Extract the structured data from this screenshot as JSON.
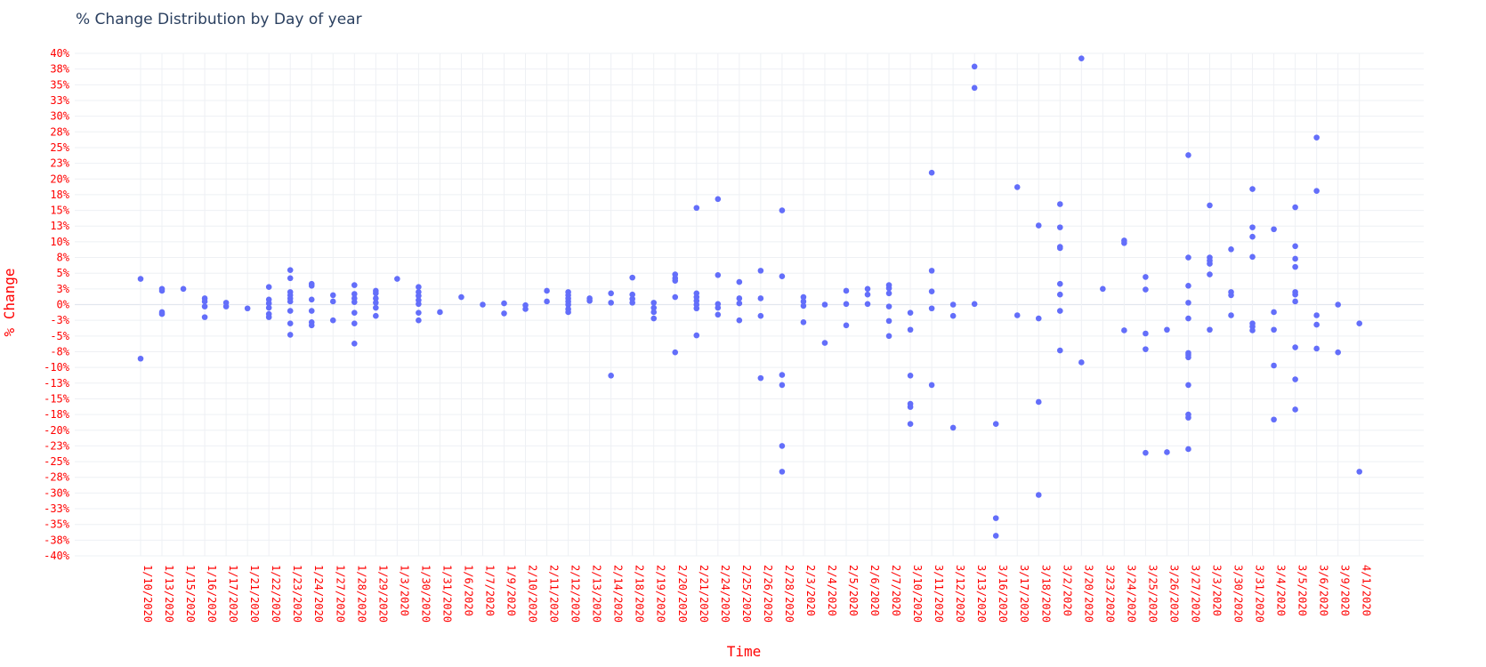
{
  "chart_data": {
    "type": "scatter",
    "title": "% Change Distribution by Day of year",
    "xlabel": "Time",
    "ylabel": "% Change",
    "ylim": [
      -40,
      40
    ],
    "grid": true,
    "marker_color": "#636efa",
    "tick_color": "#ff0000",
    "y_ticks": [
      "40%",
      "38%",
      "35%",
      "33%",
      "30%",
      "28%",
      "25%",
      "23%",
      "20%",
      "18%",
      "15%",
      "13%",
      "10%",
      "8%",
      "5%",
      "3%",
      "0%",
      "-3%",
      "-5%",
      "-8%",
      "-10%",
      "-13%",
      "-15%",
      "-18%",
      "-20%",
      "-23%",
      "-25%",
      "-28%",
      "-30%",
      "-33%",
      "-35%",
      "-38%",
      "-40%"
    ],
    "categories": [
      "1/10/2020",
      "1/13/2020",
      "1/15/2020",
      "1/16/2020",
      "1/17/2020",
      "1/21/2020",
      "1/22/2020",
      "1/23/2020",
      "1/24/2020",
      "1/27/2020",
      "1/28/2020",
      "1/29/2020",
      "1/3/2020",
      "1/30/2020",
      "1/31/2020",
      "1/6/2020",
      "1/7/2020",
      "1/9/2020",
      "2/10/2020",
      "2/11/2020",
      "2/12/2020",
      "2/13/2020",
      "2/14/2020",
      "2/18/2020",
      "2/19/2020",
      "2/20/2020",
      "2/21/2020",
      "2/24/2020",
      "2/25/2020",
      "2/26/2020",
      "2/28/2020",
      "2/3/2020",
      "2/4/2020",
      "2/5/2020",
      "2/6/2020",
      "2/7/2020",
      "3/10/2020",
      "3/11/2020",
      "3/12/2020",
      "3/13/2020",
      "3/16/2020",
      "3/17/2020",
      "3/18/2020",
      "3/2/2020",
      "3/20/2020",
      "3/23/2020",
      "3/24/2020",
      "3/25/2020",
      "3/26/2020",
      "3/27/2020",
      "3/3/2020",
      "3/30/2020",
      "3/31/2020",
      "3/4/2020",
      "3/5/2020",
      "3/6/2020",
      "3/9/2020",
      "4/1/2020"
    ],
    "points": [
      {
        "x": "1/10/2020",
        "y": [
          4.1,
          -8.6
        ]
      },
      {
        "x": "1/13/2020",
        "y": [
          2.5,
          2.2,
          -1.2,
          -1.5
        ]
      },
      {
        "x": "1/15/2020",
        "y": [
          2.5
        ]
      },
      {
        "x": "1/16/2020",
        "y": [
          1.0,
          0.5,
          -0.3,
          -2.0
        ]
      },
      {
        "x": "1/17/2020",
        "y": [
          0.3,
          -0.3
        ]
      },
      {
        "x": "1/21/2020",
        "y": [
          -0.6
        ]
      },
      {
        "x": "1/22/2020",
        "y": [
          2.8,
          0.8,
          0.2,
          -0.5,
          -1.5,
          -2.0
        ]
      },
      {
        "x": "1/23/2020",
        "y": [
          5.5,
          4.2,
          2.0,
          1.5,
          1.0,
          0.5,
          -1.0,
          -3.0,
          -4.8
        ]
      },
      {
        "x": "1/24/2020",
        "y": [
          3.3,
          3.0,
          0.8,
          -1.0,
          -2.8,
          -3.3
        ]
      },
      {
        "x": "1/27/2020",
        "y": [
          1.5,
          0.5,
          -2.5
        ]
      },
      {
        "x": "1/28/2020",
        "y": [
          3.1,
          1.7,
          1.0,
          0.4,
          -1.3,
          -3.0,
          -6.2
        ]
      },
      {
        "x": "1/29/2020",
        "y": [
          2.2,
          1.8,
          1.0,
          0.3,
          -0.5,
          -1.8
        ]
      },
      {
        "x": "1/3/2020",
        "y": [
          4.1
        ]
      },
      {
        "x": "1/30/2020",
        "y": [
          2.8,
          2.0,
          1.4,
          0.7,
          0.1,
          -1.3,
          -2.5
        ]
      },
      {
        "x": "1/31/2020",
        "y": [
          -1.2
        ]
      },
      {
        "x": "1/6/2020",
        "y": [
          1.2
        ]
      },
      {
        "x": "1/7/2020",
        "y": [
          0.0
        ]
      },
      {
        "x": "1/9/2020",
        "y": [
          0.2,
          -1.4
        ]
      },
      {
        "x": "2/10/2020",
        "y": [
          -0.1,
          -0.7
        ]
      },
      {
        "x": "2/11/2020",
        "y": [
          2.2,
          0.5
        ]
      },
      {
        "x": "2/12/2020",
        "y": [
          2.0,
          1.5,
          1.0,
          0.5,
          0.0,
          -0.7,
          -1.2
        ]
      },
      {
        "x": "2/13/2020",
        "y": [
          1.0,
          0.6
        ]
      },
      {
        "x": "2/14/2020",
        "y": [
          1.8,
          0.3,
          -11.3
        ]
      },
      {
        "x": "2/18/2020",
        "y": [
          4.3,
          1.6,
          0.9,
          0.3
        ]
      },
      {
        "x": "2/19/2020",
        "y": [
          0.3,
          -0.5,
          -1.2,
          -2.2
        ]
      },
      {
        "x": "2/20/2020",
        "y": [
          4.8,
          4.2,
          3.8,
          1.2,
          -7.6
        ]
      },
      {
        "x": "2/21/2020",
        "y": [
          15.4,
          1.8,
          1.2,
          0.6,
          0.0,
          -0.6,
          -4.9
        ]
      },
      {
        "x": "2/24/2020",
        "y": [
          16.8,
          4.7,
          0.1,
          -0.5,
          -1.6
        ]
      },
      {
        "x": "2/25/2020",
        "y": [
          3.6,
          1.0,
          0.2,
          -2.5
        ]
      },
      {
        "x": "2/26/2020",
        "y": [
          5.4,
          1.0,
          -1.8,
          -11.7
        ]
      },
      {
        "x": "2/28/2020",
        "y": [
          15.0,
          4.5,
          -11.2,
          -12.8,
          -22.5,
          -26.6
        ]
      },
      {
        "x": "2/3/2020",
        "y": [
          1.2,
          0.5,
          -0.2,
          -2.8
        ]
      },
      {
        "x": "2/4/2020",
        "y": [
          0.0,
          -6.1
        ]
      },
      {
        "x": "2/5/2020",
        "y": [
          2.2,
          0.1,
          -3.3
        ]
      },
      {
        "x": "2/6/2020",
        "y": [
          2.5,
          1.6,
          0.1
        ]
      },
      {
        "x": "2/7/2020",
        "y": [
          3.1,
          2.6,
          1.8,
          -0.3,
          -2.6,
          -5.0
        ]
      },
      {
        "x": "3/10/2020",
        "y": [
          -1.3,
          -4.0,
          -11.3,
          -15.8,
          -16.3,
          -19.0
        ]
      },
      {
        "x": "3/11/2020",
        "y": [
          21.0,
          5.4,
          2.1,
          -0.6,
          -12.8
        ]
      },
      {
        "x": "3/12/2020",
        "y": [
          0.0,
          -1.8,
          -19.6
        ]
      },
      {
        "x": "3/13/2020",
        "y": [
          37.9,
          34.5,
          0.1
        ]
      },
      {
        "x": "3/16/2020",
        "y": [
          -19.0,
          -34.0,
          -36.8
        ]
      },
      {
        "x": "3/17/2020",
        "y": [
          18.7,
          -1.7
        ]
      },
      {
        "x": "3/18/2020",
        "y": [
          12.6,
          -2.2,
          -15.5,
          -30.3
        ]
      },
      {
        "x": "3/2/2020",
        "y": [
          16.0,
          12.3,
          9.2,
          9.0,
          3.3,
          1.6,
          -1.0,
          -7.3
        ]
      },
      {
        "x": "3/20/2020",
        "y": [
          39.2,
          -9.2
        ]
      },
      {
        "x": "3/23/2020",
        "y": [
          2.5
        ]
      },
      {
        "x": "3/24/2020",
        "y": [
          10.2,
          9.8,
          -4.1
        ]
      },
      {
        "x": "3/25/2020",
        "y": [
          4.4,
          2.4,
          -4.6,
          -7.1,
          -23.6
        ]
      },
      {
        "x": "3/26/2020",
        "y": [
          -4.0,
          -23.5
        ]
      },
      {
        "x": "3/27/2020",
        "y": [
          23.8,
          7.5,
          3.0,
          0.3,
          -2.2,
          -7.7,
          -8.0,
          -8.4,
          -12.8,
          -17.5,
          -18.0,
          -23.0
        ]
      },
      {
        "x": "3/3/2020",
        "y": [
          15.8,
          7.5,
          7.0,
          6.5,
          4.8,
          -4.0
        ]
      },
      {
        "x": "3/30/2020",
        "y": [
          8.8,
          2.0,
          1.5,
          -1.7
        ]
      },
      {
        "x": "3/31/2020",
        "y": [
          18.4,
          12.3,
          10.8,
          7.6,
          -3.0,
          -3.5,
          -4.1
        ]
      },
      {
        "x": "3/4/2020",
        "y": [
          12.0,
          -1.2,
          -4.0,
          -9.7,
          -18.3
        ]
      },
      {
        "x": "3/5/2020",
        "y": [
          15.5,
          9.3,
          7.3,
          6.0,
          2.0,
          1.6,
          0.5,
          -6.8,
          -11.9,
          -16.7
        ]
      },
      {
        "x": "3/6/2020",
        "y": [
          26.6,
          18.1,
          -1.7,
          -3.2,
          -7.0
        ]
      },
      {
        "x": "3/9/2020",
        "y": [
          0.0,
          -7.6
        ]
      },
      {
        "x": "4/1/2020",
        "y": [
          -3.0,
          -26.6
        ]
      }
    ]
  }
}
